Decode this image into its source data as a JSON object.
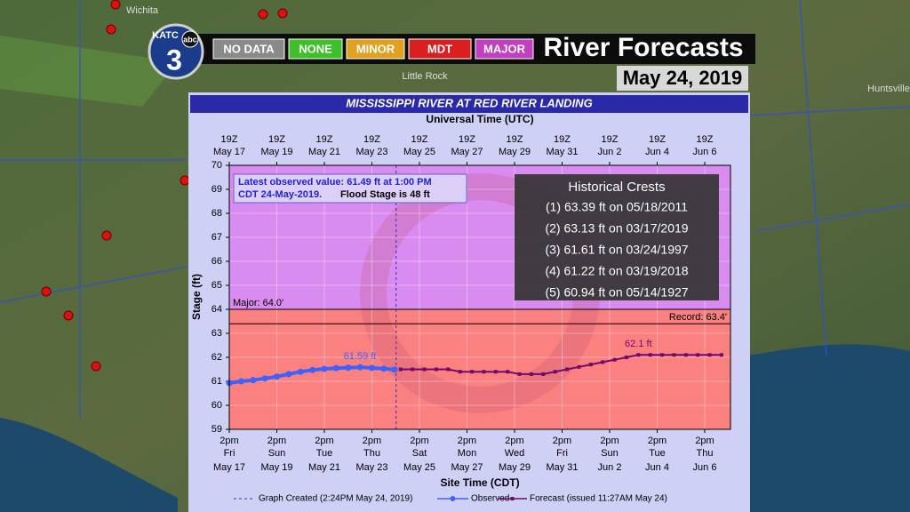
{
  "banner": {
    "station": "KATC",
    "network": "abc",
    "channel": "3",
    "legend": [
      {
        "label": "NO DATA",
        "color": "#8a8a8a"
      },
      {
        "label": "NONE",
        "color": "#3fbf2a"
      },
      {
        "label": "MINOR",
        "color": "#e0a020"
      },
      {
        "label": "MDT",
        "color": "#d82020"
      },
      {
        "label": "MAJOR",
        "color": "#c040c0"
      }
    ],
    "title": "River Forecasts",
    "date": "May 24, 2019"
  },
  "map": {
    "labels": [
      "Little Rock",
      "Huntsville",
      "Wichita"
    ]
  },
  "chart_data": {
    "type": "hydrograph",
    "title": "MISSISSIPPI RIVER AT RED RIVER LANDING",
    "x2label": "Universal Time (UTC)",
    "xlabel": "Site Time (CDT)",
    "ylabel": "Stage (ft)",
    "ylim": [
      59,
      70
    ],
    "yticks": [
      59,
      60,
      61,
      62,
      63,
      64,
      65,
      66,
      67,
      68,
      69,
      70
    ],
    "grid": true,
    "xlim": [
      "2019-05-17T14:00",
      "2019-06-07T16:00"
    ],
    "xticks": [
      {
        "value": "2019-05-17T14:00",
        "label": "2pm",
        "day": "Fri",
        "date": "May 17"
      },
      {
        "value": "2019-05-19T14:00",
        "label": "2pm",
        "day": "Sun",
        "date": "May 19"
      },
      {
        "value": "2019-05-21T14:00",
        "label": "2pm",
        "day": "Tue",
        "date": "May 21"
      },
      {
        "value": "2019-05-23T14:00",
        "label": "2pm",
        "day": "Thu",
        "date": "May 23"
      },
      {
        "value": "2019-05-25T14:00",
        "label": "2pm",
        "day": "Sat",
        "date": "May 25"
      },
      {
        "value": "2019-05-27T14:00",
        "label": "2pm",
        "day": "Mon",
        "date": "May 27"
      },
      {
        "value": "2019-05-29T14:00",
        "label": "2pm",
        "day": "Wed",
        "date": "May 29"
      },
      {
        "value": "2019-05-31T14:00",
        "label": "2pm",
        "day": "Fri",
        "date": "May 31"
      },
      {
        "value": "2019-06-02T14:00",
        "label": "2pm",
        "day": "Sun",
        "date": "Jun 2"
      },
      {
        "value": "2019-06-04T14:00",
        "label": "2pm",
        "day": "Tue",
        "date": "Jun 4"
      },
      {
        "value": "2019-06-06T14:00",
        "label": "2pm",
        "day": "Thu",
        "date": "Jun 6"
      }
    ],
    "x2ticks": [
      {
        "value": "2019-05-17T14:00",
        "label": "19Z",
        "date": "May 17"
      },
      {
        "value": "2019-05-19T14:00",
        "label": "19Z",
        "date": "May 19"
      },
      {
        "value": "2019-05-21T14:00",
        "label": "19Z",
        "date": "May 21"
      },
      {
        "value": "2019-05-23T14:00",
        "label": "19Z",
        "date": "May 23"
      },
      {
        "value": "2019-05-25T14:00",
        "label": "19Z",
        "date": "May 25"
      },
      {
        "value": "2019-05-27T14:00",
        "label": "19Z",
        "date": "May 27"
      },
      {
        "value": "2019-05-29T14:00",
        "label": "19Z",
        "date": "May 29"
      },
      {
        "value": "2019-05-31T14:00",
        "label": "19Z",
        "date": "May 31"
      },
      {
        "value": "2019-06-02T14:00",
        "label": "19Z",
        "date": "Jun 2"
      },
      {
        "value": "2019-06-04T14:00",
        "label": "19Z",
        "date": "Jun 4"
      },
      {
        "value": "2019-06-06T14:00",
        "label": "19Z",
        "date": "Jun 6"
      }
    ],
    "reference_lines": [
      {
        "value": 64,
        "label": "Major: 64.0'",
        "above_color": "#d98cf0",
        "below_color": "#fb8080"
      },
      {
        "value": 63.4,
        "label": "Record: 63.4'"
      }
    ],
    "created": {
      "x": "2019-05-24T14:24",
      "label": "Graph Created (2:24PM May 24, 2019)"
    },
    "series": [
      {
        "name": "Observed",
        "color": "#4060ff",
        "x": [
          "2019-05-17T14:00",
          "2019-05-18T02:00",
          "2019-05-18T14:00",
          "2019-05-19T02:00",
          "2019-05-19T14:00",
          "2019-05-20T02:00",
          "2019-05-20T14:00",
          "2019-05-21T02:00",
          "2019-05-21T14:00",
          "2019-05-22T02:00",
          "2019-05-22T14:00",
          "2019-05-23T02:00",
          "2019-05-23T14:00",
          "2019-05-24T02:00",
          "2019-05-24T13:00"
        ],
        "values": [
          60.93,
          61.0,
          61.05,
          61.12,
          61.2,
          61.3,
          61.4,
          61.47,
          61.52,
          61.55,
          61.57,
          61.59,
          61.56,
          61.53,
          61.49
        ],
        "value_labels": [
          null,
          null,
          null,
          null,
          null,
          null,
          null,
          null,
          null,
          null,
          null,
          "61.59 ft",
          null,
          null,
          null
        ]
      },
      {
        "name": "Forecast (issued 11:27AM May 24)",
        "color": "#700a6a",
        "x": [
          "2019-05-24T19:00",
          "2019-05-25T07:00",
          "2019-05-25T19:00",
          "2019-05-26T07:00",
          "2019-05-26T19:00",
          "2019-05-27T07:00",
          "2019-05-27T19:00",
          "2019-05-28T07:00",
          "2019-05-28T19:00",
          "2019-05-29T07:00",
          "2019-05-29T19:00",
          "2019-05-30T07:00",
          "2019-05-30T19:00",
          "2019-05-31T07:00",
          "2019-05-31T19:00",
          "2019-06-01T07:00",
          "2019-06-01T19:00",
          "2019-06-02T07:00",
          "2019-06-02T19:00",
          "2019-06-03T07:00",
          "2019-06-03T19:00",
          "2019-06-04T07:00",
          "2019-06-04T19:00",
          "2019-06-05T07:00",
          "2019-06-05T19:00",
          "2019-06-06T07:00",
          "2019-06-06T19:00",
          "2019-06-07T07:00"
        ],
        "values": [
          61.5,
          61.5,
          61.5,
          61.5,
          61.5,
          61.4,
          61.4,
          61.4,
          61.4,
          61.4,
          61.3,
          61.3,
          61.3,
          61.4,
          61.5,
          61.6,
          61.7,
          61.8,
          61.9,
          62.0,
          62.1,
          62.1,
          62.1,
          62.1,
          62.1,
          62.1,
          62.1,
          62.1
        ],
        "value_labels": [
          null,
          null,
          null,
          null,
          null,
          null,
          null,
          null,
          null,
          null,
          null,
          null,
          null,
          null,
          null,
          null,
          null,
          null,
          null,
          null,
          "62.1 ft",
          null,
          null,
          null,
          null,
          null,
          null,
          null
        ]
      }
    ],
    "observed_note": [
      "Latest observed value: 61.49 ft at 1:00 PM",
      "CDT 24-May-2019.",
      "Flood Stage is 48 ft"
    ],
    "crests": {
      "title": "Historical Crests",
      "items": [
        "(1) 63.39 ft on 05/18/2011",
        "(2) 63.13 ft on 03/17/2019",
        "(3) 61.61 ft on 03/24/1997",
        "(4) 61.22 ft on 03/19/2018",
        "(5) 60.94 ft on 05/14/1927"
      ]
    }
  }
}
